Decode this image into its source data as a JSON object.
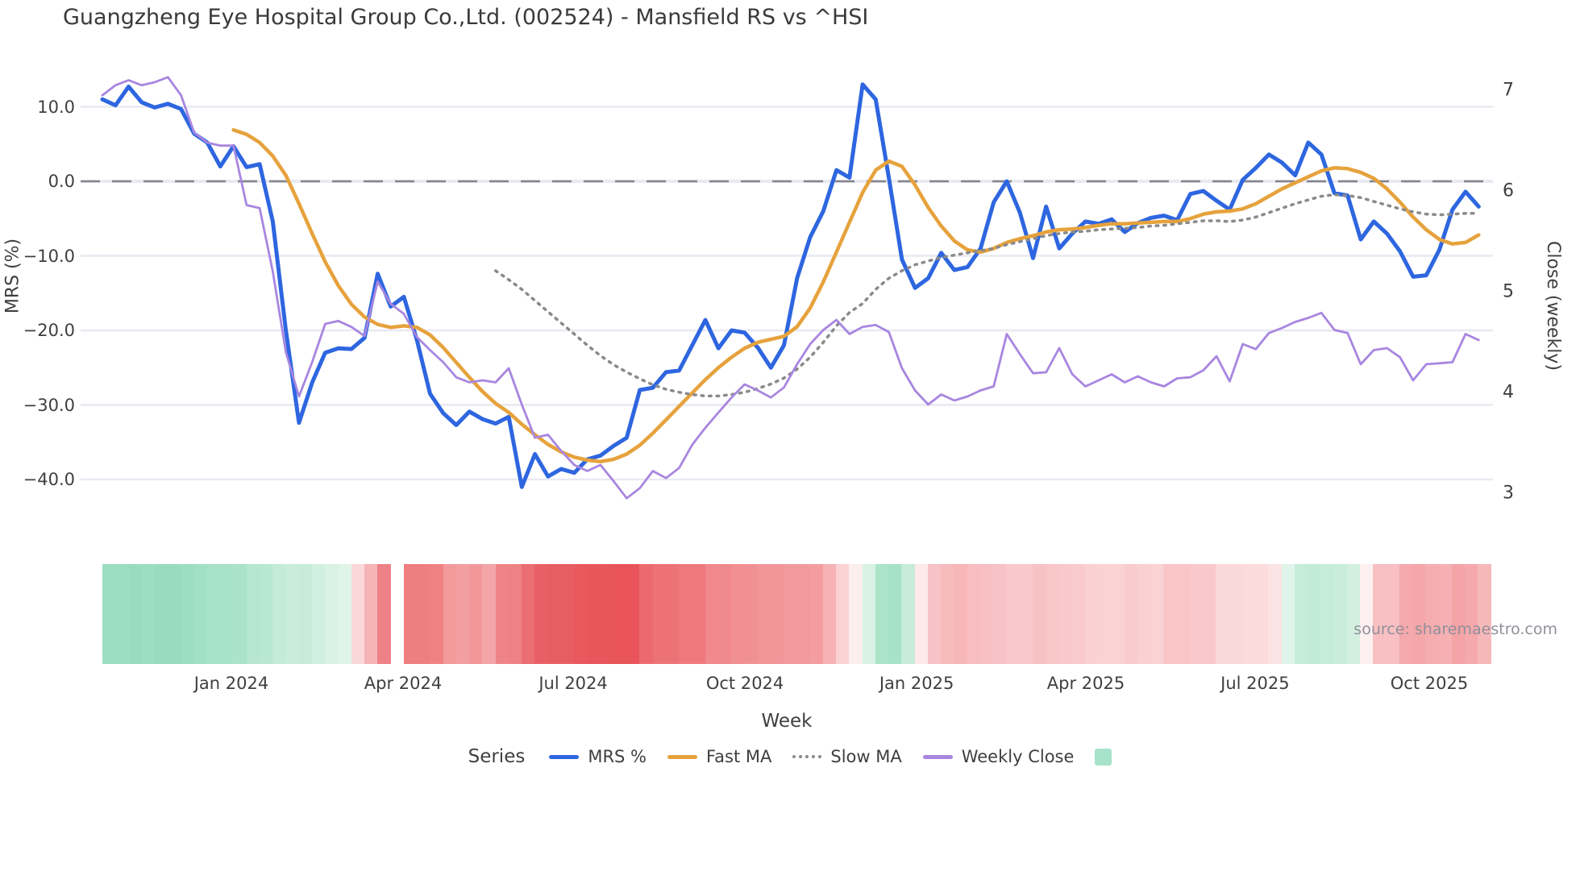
{
  "title": "Guangzheng Eye Hospital Group Co.,Ltd. (002524) - Mansfield RS vs ^HSI",
  "source_note": "source: sharemaestro.com",
  "legend": {
    "series_label": "Series",
    "items": [
      {
        "label": "MRS %",
        "swatch": "line",
        "color": "#2e66e0"
      },
      {
        "label": "Fast MA",
        "swatch": "line",
        "color": "#e6a23c"
      },
      {
        "label": "Slow MA",
        "swatch": "dotted",
        "color": "#8a8a8a"
      },
      {
        "label": "Weekly Close",
        "swatch": "line",
        "color": "#a886e0"
      },
      {
        "label": "",
        "swatch": "square",
        "color": "#a7e3cb"
      }
    ]
  },
  "chart_data": {
    "type": "line",
    "title": "Guangzheng Eye Hospital Group Co.,Ltd. (002524) - Mansfield RS vs ^HSI",
    "xlabel": "Week",
    "n_weeks": 106,
    "x_ticks": [
      {
        "label": "Jan 2024",
        "week": 9.84
      },
      {
        "label": "Apr 2024",
        "week": 22.94
      },
      {
        "label": "Jul 2024",
        "week": 35.92
      },
      {
        "label": "Oct 2024",
        "week": 49.02
      },
      {
        "label": "Jan 2025",
        "week": 62.12
      },
      {
        "label": "Apr 2025",
        "week": 75.03
      },
      {
        "label": "Jul 2025",
        "week": 87.94
      },
      {
        "label": "Oct 2025",
        "week": 101.23
      }
    ],
    "left_axis": {
      "label": "MRS (%)",
      "ticks": [
        {
          "label": "10.0",
          "value": 10
        },
        {
          "label": "0.0",
          "value": 0
        },
        {
          "label": "−10.0",
          "value": -10
        },
        {
          "label": "−20.0",
          "value": -20
        },
        {
          "label": "−30.0",
          "value": -30
        },
        {
          "label": "−40.0",
          "value": -40
        }
      ]
    },
    "right_axis": {
      "label": "Close (weekly)",
      "ticks": [
        {
          "label": "7",
          "value": 7
        },
        {
          "label": "6",
          "value": 6
        },
        {
          "label": "5",
          "value": 5
        },
        {
          "label": "4",
          "value": 4
        },
        {
          "label": "3",
          "value": 3
        }
      ]
    },
    "zero_line_value": 0,
    "grid": true,
    "legend_position": "bottom",
    "series": [
      {
        "name": "MRS %",
        "axis": "left",
        "color": "#2e66e0",
        "width": 5,
        "dash": null,
        "values": [
          11.0,
          10.2,
          12.7,
          10.6,
          9.9,
          10.4,
          9.7,
          6.4,
          5.2,
          2.0,
          4.7,
          1.9,
          2.3,
          -5.4,
          -20.0,
          -32.4,
          -27.0,
          -23.0,
          -22.4,
          -22.5,
          -21.0,
          -12.4,
          -16.8,
          -15.5,
          -21.3,
          -28.5,
          -31.1,
          -32.7,
          -30.9,
          -31.9,
          -32.5,
          -31.6,
          -41.0,
          -36.6,
          -39.6,
          -38.6,
          -39.1,
          -37.3,
          -36.8,
          -35.5,
          -34.4,
          -28.0,
          -27.7,
          -25.6,
          -25.4,
          -22.0,
          -18.6,
          -22.4,
          -20.0,
          -20.3,
          -22.3,
          -25.0,
          -22.0,
          -13.0,
          -7.5,
          -4.0,
          1.5,
          0.5,
          13.0,
          11.0,
          0.5,
          -10.5,
          -14.3,
          -13.0,
          -9.6,
          -11.9,
          -11.5,
          -9.0,
          -2.8,
          0.0,
          -4.2,
          -10.3,
          -3.4,
          -9.0,
          -7.0,
          -5.4,
          -5.7,
          -5.1,
          -6.8,
          -5.6,
          -4.9,
          -4.6,
          -5.2,
          -1.7,
          -1.3,
          -2.6,
          -3.8,
          0.2,
          1.8,
          3.6,
          2.5,
          0.8,
          5.2,
          3.6,
          -1.6,
          -1.9,
          -7.8,
          -5.4,
          -7.0,
          -9.4,
          -12.8,
          -12.6,
          -9.2,
          -3.8,
          -1.4,
          -3.4
        ]
      },
      {
        "name": "Fast MA",
        "axis": "left",
        "color": "#e6a23c",
        "width": 4.5,
        "dash": null,
        "values": [
          null,
          null,
          null,
          null,
          null,
          null,
          null,
          null,
          null,
          null,
          6.9,
          6.3,
          5.2,
          3.4,
          0.8,
          -3.0,
          -7.0,
          -10.8,
          -14.0,
          -16.5,
          -18.2,
          -19.2,
          -19.6,
          -19.4,
          -19.6,
          -20.6,
          -22.3,
          -24.3,
          -26.3,
          -28.2,
          -29.8,
          -31.0,
          -32.6,
          -34.0,
          -35.3,
          -36.3,
          -37.0,
          -37.4,
          -37.6,
          -37.3,
          -36.6,
          -35.4,
          -33.8,
          -32.0,
          -30.2,
          -28.4,
          -26.6,
          -25.0,
          -23.6,
          -22.4,
          -21.6,
          -21.2,
          -20.8,
          -19.5,
          -17.0,
          -13.5,
          -9.5,
          -5.5,
          -1.5,
          1.5,
          2.7,
          2.0,
          -0.5,
          -3.5,
          -6.0,
          -8.0,
          -9.2,
          -9.5,
          -9.0,
          -8.2,
          -7.7,
          -7.3,
          -6.8,
          -6.5,
          -6.4,
          -6.2,
          -5.9,
          -5.7,
          -5.7,
          -5.6,
          -5.5,
          -5.4,
          -5.4,
          -5.0,
          -4.4,
          -4.1,
          -4.0,
          -3.7,
          -3.0,
          -2.0,
          -1.0,
          -0.2,
          0.6,
          1.4,
          1.8,
          1.7,
          1.2,
          0.4,
          -1.0,
          -2.8,
          -4.8,
          -6.5,
          -7.8,
          -8.4,
          -8.2,
          -7.2
        ]
      },
      {
        "name": "Slow MA",
        "axis": "left",
        "color": "#8a8a8a",
        "width": 3.5,
        "dash": "2.5 7",
        "values": [
          null,
          null,
          null,
          null,
          null,
          null,
          null,
          null,
          null,
          null,
          null,
          null,
          null,
          null,
          null,
          null,
          null,
          null,
          null,
          null,
          null,
          null,
          null,
          null,
          null,
          null,
          null,
          null,
          null,
          null,
          -12.0,
          -13.2,
          -14.5,
          -16.0,
          -17.5,
          -19.0,
          -20.5,
          -22.0,
          -23.4,
          -24.6,
          -25.6,
          -26.5,
          -27.3,
          -27.9,
          -28.3,
          -28.6,
          -28.8,
          -28.8,
          -28.6,
          -28.3,
          -27.8,
          -27.2,
          -26.4,
          -25.2,
          -23.6,
          -21.6,
          -19.4,
          -17.6,
          -16.4,
          -14.5,
          -13.0,
          -12.0,
          -11.2,
          -10.7,
          -10.2,
          -9.9,
          -9.6,
          -9.3,
          -9.0,
          -8.5,
          -8.1,
          -7.7,
          -7.3,
          -7.0,
          -6.8,
          -6.7,
          -6.5,
          -6.4,
          -6.3,
          -6.2,
          -6.0,
          -5.9,
          -5.7,
          -5.5,
          -5.3,
          -5.3,
          -5.4,
          -5.2,
          -4.8,
          -4.2,
          -3.6,
          -3.0,
          -2.5,
          -2.0,
          -1.8,
          -1.9,
          -2.2,
          -2.7,
          -3.2,
          -3.7,
          -4.1,
          -4.4,
          -4.5,
          -4.4,
          -4.3,
          -4.3
        ]
      },
      {
        "name": "Weekly Close",
        "axis": "right",
        "color": "#a886e0",
        "width": 2.8,
        "dash": null,
        "values": [
          6.95,
          7.05,
          7.1,
          7.05,
          7.08,
          7.13,
          6.95,
          6.58,
          6.48,
          6.45,
          6.45,
          5.86,
          5.83,
          5.2,
          4.4,
          3.96,
          4.3,
          4.68,
          4.71,
          4.65,
          4.56,
          5.1,
          4.88,
          4.78,
          4.55,
          4.42,
          4.3,
          4.15,
          4.1,
          4.12,
          4.1,
          4.24,
          3.88,
          3.55,
          3.58,
          3.42,
          3.28,
          3.22,
          3.28,
          3.12,
          2.95,
          3.05,
          3.22,
          3.15,
          3.25,
          3.48,
          3.65,
          3.8,
          3.95,
          4.08,
          4.02,
          3.95,
          4.05,
          4.28,
          4.48,
          4.62,
          4.72,
          4.58,
          4.65,
          4.67,
          4.6,
          4.24,
          4.02,
          3.88,
          3.98,
          3.92,
          3.96,
          4.02,
          4.06,
          4.58,
          4.38,
          4.19,
          4.2,
          4.44,
          4.18,
          4.06,
          4.12,
          4.18,
          4.1,
          4.16,
          4.1,
          4.06,
          4.14,
          4.15,
          4.22,
          4.36,
          4.11,
          4.48,
          4.43,
          4.59,
          4.64,
          4.7,
          4.74,
          4.79,
          4.62,
          4.59,
          4.28,
          4.42,
          4.44,
          4.35,
          4.12,
          4.28,
          4.29,
          4.3,
          4.58,
          4.52
        ]
      }
    ],
    "heatmap_weekly_colors": [
      "#9cdec0",
      "#9cdec0",
      "#98dcbd",
      "#9cdec0",
      "#98dcbd",
      "#98dcbd",
      "#9cdec0",
      "#a2e0c4",
      "#a8e2c8",
      "#a8e2c8",
      "#aae3c9",
      "#b6e6cf",
      "#b9e8d1",
      "#c3ebd7",
      "#caedda",
      "#c6ecd8",
      "#d2f0e1",
      "#daf2e6",
      "#e0f4ea",
      "#fad8d9",
      "#f5b4b7",
      "#ee8187",
      null,
      "#ef7e80",
      "#ef7e80",
      "#f08183",
      "#f29a9c",
      "#f39fa1",
      "#f2989a",
      "#f4a5a8",
      "#ee8487",
      "#ee8184",
      "#ea6e72",
      "#e86065",
      "#e85d62",
      "#e85d62",
      "#e9585d",
      "#e8555a",
      "#e8555a",
      "#e85459",
      "#e8545a",
      "#ec6a6e",
      "#ed7276",
      "#ed7276",
      "#ee797d",
      "#ee797d",
      "#f0888c",
      "#f08a8e",
      "#f18f92",
      "#f19094",
      "#f29599",
      "#f29599",
      "#f29a9d",
      "#f29a9d",
      "#f39da0",
      "#f6b2b5",
      "#fad2d4",
      "#fdeeee",
      "#d8f2e5",
      "#abe4c9",
      "#a7e2c6",
      "#c6ecd9",
      "#fdeaea",
      "#f8c3c6",
      "#f7babd",
      "#f7b6b9",
      "#f8bdc0",
      "#f8c0c3",
      "#f8c3c6",
      "#f9c8ca",
      "#f9c8ca",
      "#f8c2c5",
      "#f9c6c8",
      "#f9c8ca",
      "#f9cbcd",
      "#fad0d1",
      "#fad2d3",
      "#fad2d3",
      "#f9cbcd",
      "#fad0d1",
      "#fad2d3",
      "#f9c5c7",
      "#f9c5c7",
      "#f9c8ca",
      "#f9c8ca",
      "#fbd8d9",
      "#fbd8d9",
      "#fbdbdc",
      "#fbdbdc",
      "#fce3e3",
      "#dff4ea",
      "#c5ecd9",
      "#c2ebd7",
      "#c5ecd9",
      "#c8edda",
      "#d2efe0",
      "#fdf0f0",
      "#f8c0c3",
      "#f8c0c3",
      "#f5a9ac",
      "#f5a6a9",
      "#f6adb0",
      "#f6b0b3",
      "#f4a3a6",
      "#f5a9ac",
      "#f7b8ba"
    ],
    "colors": {
      "grid": "#e9e9f2",
      "zero_line": "#85858d",
      "background": "#ffffff"
    }
  }
}
